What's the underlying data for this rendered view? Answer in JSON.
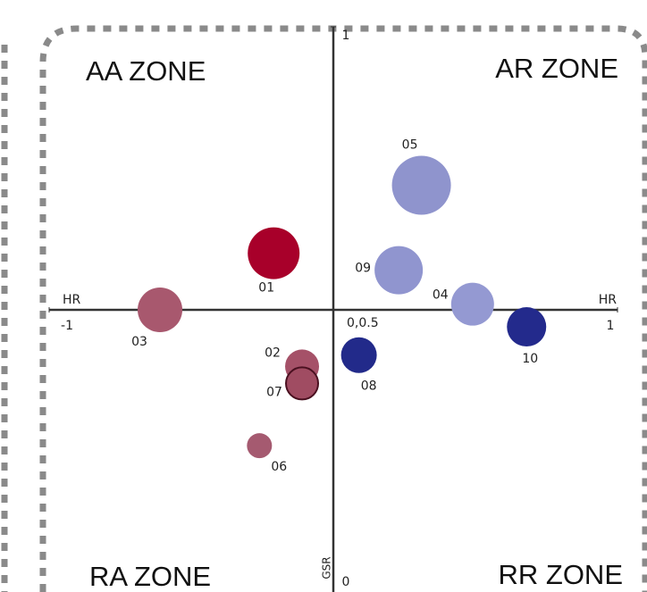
{
  "chart_data": {
    "type": "scatter",
    "xlabel": "HR",
    "ylabel": "GSR",
    "origin_label": "0,0.5",
    "annotations": [
      "AA ZONE",
      "AR ZONE",
      "RA ZONE",
      "RR ZONE"
    ],
    "xlim": [
      -1,
      1
    ],
    "ylim": [
      0,
      1
    ],
    "xticks": [
      -1,
      1
    ],
    "yticks": [
      0,
      1
    ],
    "labels": [
      "05",
      "09",
      "04",
      "10",
      "08",
      "01",
      "03",
      "02",
      "07",
      "06"
    ],
    "x": [
      0.31,
      0.23,
      0.49,
      0.68,
      0.09,
      -0.21,
      -0.61,
      -0.11,
      -0.11,
      -0.26
    ],
    "values": [
      0.72,
      0.57,
      0.51,
      0.47,
      0.42,
      0.6,
      0.5,
      0.4,
      0.37,
      0.26
    ],
    "sizes": [
      33,
      27,
      24,
      22,
      20,
      29,
      25,
      19,
      18,
      14
    ],
    "colors": [
      "#8f94cd",
      "#9095cf",
      "#9499d2",
      "#232a8c",
      "#222a8a",
      "#a8002a",
      "#a8586e",
      "#a55168",
      "#a04c62",
      "#a55a70"
    ]
  }
}
